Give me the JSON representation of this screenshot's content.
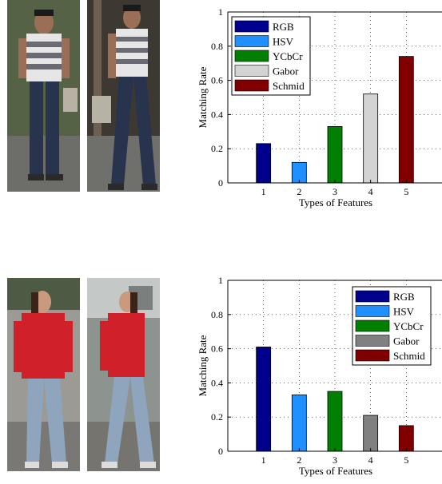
{
  "chart_data": [
    {
      "type": "bar",
      "categories": [
        "1",
        "2",
        "3",
        "4",
        "5"
      ],
      "values": [
        0.23,
        0.12,
        0.33,
        0.52,
        0.74
      ],
      "series_names": [
        "RGB",
        "HSV",
        "YCbCr",
        "Gabor",
        "Schmid"
      ],
      "colors": [
        "#00008f",
        "#1e90ff",
        "#007f00",
        "#d3d3d3",
        "#800000"
      ],
      "xlabel": "Types of Features",
      "ylabel": "Matching Rate",
      "ylim": [
        0,
        1
      ],
      "yticks": [
        "0",
        "0.2",
        "0.4",
        "0.6",
        "0.8",
        "1"
      ],
      "grid": true,
      "legend_position": "top-left"
    },
    {
      "type": "bar",
      "categories": [
        "1",
        "2",
        "3",
        "4",
        "5"
      ],
      "values": [
        0.61,
        0.33,
        0.35,
        0.21,
        0.15
      ],
      "series_names": [
        "RGB",
        "HSV",
        "YCbCr",
        "Gabor",
        "Schmid"
      ],
      "colors": [
        "#00008f",
        "#1e90ff",
        "#007f00",
        "#808080",
        "#800000"
      ],
      "xlabel": "Types of Features",
      "ylabel": "Matching Rate",
      "ylim": [
        0,
        1
      ],
      "yticks": [
        "0",
        "0.2",
        "0.4",
        "0.6",
        "0.8",
        "1"
      ],
      "grid": true,
      "legend_position": "top-right"
    }
  ],
  "photos": [
    {
      "shirt": "#e8e8e8",
      "stripe": "#6a6a72",
      "pants": "#2a3550",
      "bg": "#4d5b3f"
    },
    {
      "shirt": "#e8e8e8",
      "stripe": "#6a6a72",
      "pants": "#2a3550",
      "bg": "#3f3a34"
    },
    {
      "shirt": "#d0202a",
      "stripe": "#d0202a",
      "pants": "#8fa4bd",
      "bg": "#9a9a96"
    },
    {
      "shirt": "#d0202a",
      "stripe": "#d0202a",
      "pants": "#8fa4bd",
      "bg": "#8c9490"
    }
  ]
}
